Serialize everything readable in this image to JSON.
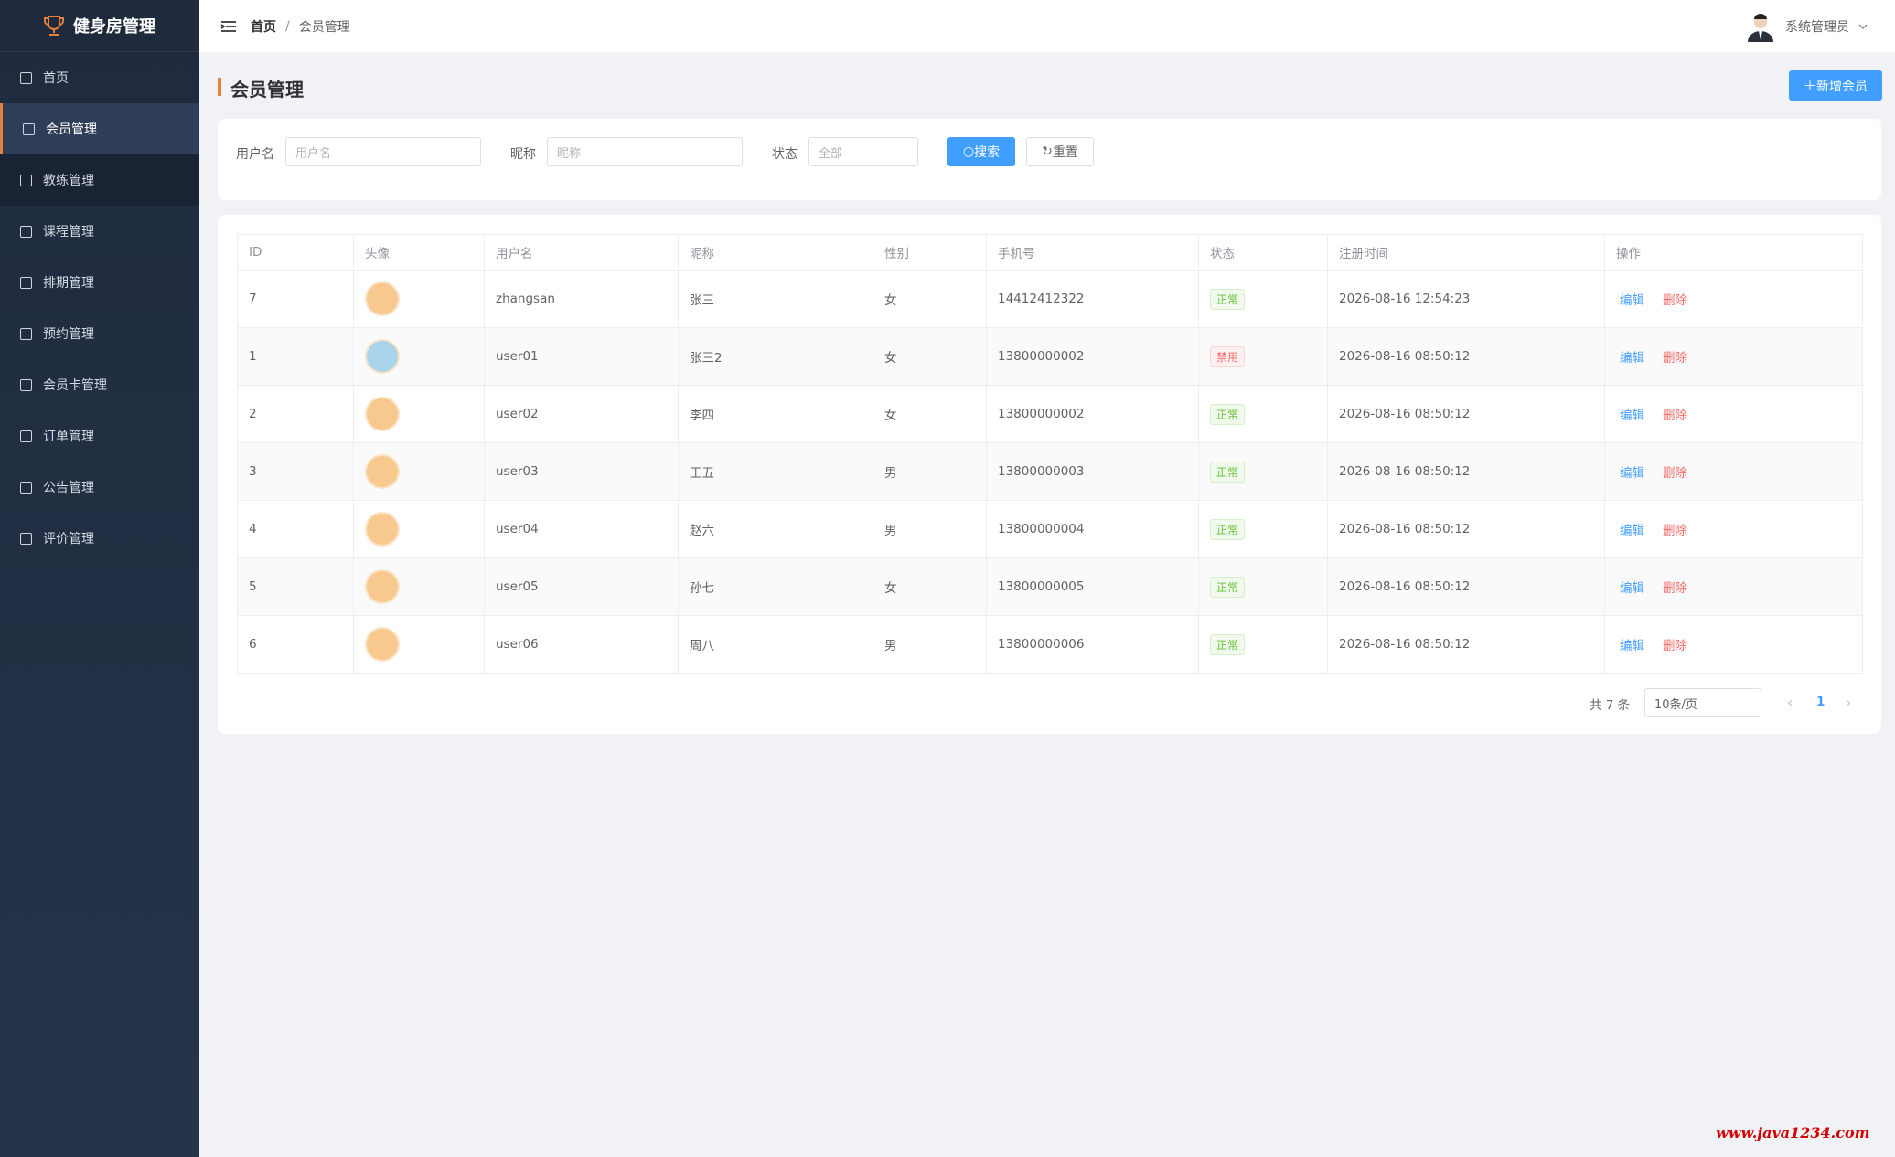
{
  "sidebar": {
    "logo": "健身房管理",
    "menu": [
      "首页",
      "会员管理",
      "教练管理",
      "课程管理",
      "排期管理",
      "预约管理",
      "会员卡管理",
      "订单管理",
      "公告管理",
      "评价管理"
    ]
  },
  "header": {
    "breadcrumb": [
      "首页",
      "会员管理"
    ],
    "user": "系统管理员"
  },
  "page": {
    "title": "会员管理",
    "add_button": "新增会员"
  },
  "filters": {
    "username_label": "用户名",
    "username_placeholder": "用户名",
    "nickname_label": "昵称",
    "nickname_placeholder": "昵称",
    "status_label": "状态",
    "status_value": "全部",
    "search": "搜索",
    "reset": "重置"
  },
  "table": {
    "columns": [
      "ID",
      "头像",
      "用户名",
      "昵称",
      "性别",
      "手机号",
      "状态",
      "注册时间",
      "操作"
    ],
    "rows": [
      [
        "7",
        "zhangsan",
        "张三",
        "女",
        "14412412322",
        "正常",
        "2026-08-16 12:54:23"
      ],
      [
        "1",
        "user01",
        "张三2",
        "女",
        "13800000002",
        "禁用",
        "2026-08-16 08:50:12"
      ],
      [
        "2",
        "user02",
        "李四",
        "女",
        "13800000002",
        "正常",
        "2026-08-16 08:50:12"
      ],
      [
        "3",
        "user03",
        "王五",
        "男",
        "13800000003",
        "正常",
        "2026-08-16 08:50:12"
      ],
      [
        "4",
        "user04",
        "赵六",
        "男",
        "13800000004",
        "正常",
        "2026-08-16 08:50:12"
      ],
      [
        "5",
        "user05",
        "孙七",
        "女",
        "13800000005",
        "正常",
        "2026-08-16 08:50:12"
      ],
      [
        "6",
        "user06",
        "周八",
        "男",
        "13800000006",
        "正常",
        "2026-08-16 08:50:12"
      ]
    ],
    "edit": "编辑",
    "delete": "删除"
  },
  "pagination": {
    "total": "共 7 条",
    "page_size": "10条/页",
    "current": "1"
  },
  "watermark": "www.java1234.com"
}
